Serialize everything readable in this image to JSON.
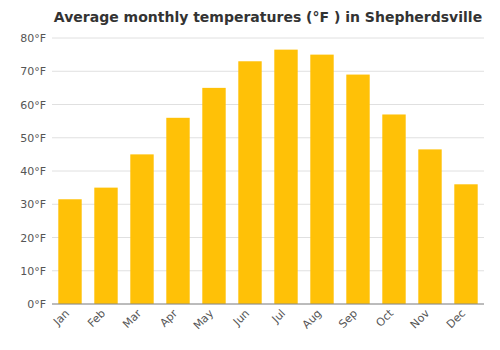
{
  "chart_data": {
    "type": "bar",
    "title": "Average monthly temperatures (°F ) in Shepherdsville",
    "categories": [
      "Jan",
      "Feb",
      "Mar",
      "Apr",
      "May",
      "Jun",
      "Jul",
      "Aug",
      "Sep",
      "Oct",
      "Nov",
      "Dec"
    ],
    "values": [
      31.5,
      35,
      45,
      56,
      65,
      73,
      76.5,
      75,
      69,
      57,
      46.5,
      36
    ],
    "color": "#FFC107",
    "ylim": [
      0,
      80
    ],
    "yticks": [
      {
        "value": 0,
        "label": "0°F"
      },
      {
        "value": 10,
        "label": "10°F"
      },
      {
        "value": 20,
        "label": "20°F"
      },
      {
        "value": 30,
        "label": "30°F"
      },
      {
        "value": 40,
        "label": "40°F"
      },
      {
        "value": 50,
        "label": "50°F"
      },
      {
        "value": 60,
        "label": "60°F"
      },
      {
        "value": 70,
        "label": "70°F"
      },
      {
        "value": 80,
        "label": "80°F"
      }
    ],
    "grid": true
  }
}
